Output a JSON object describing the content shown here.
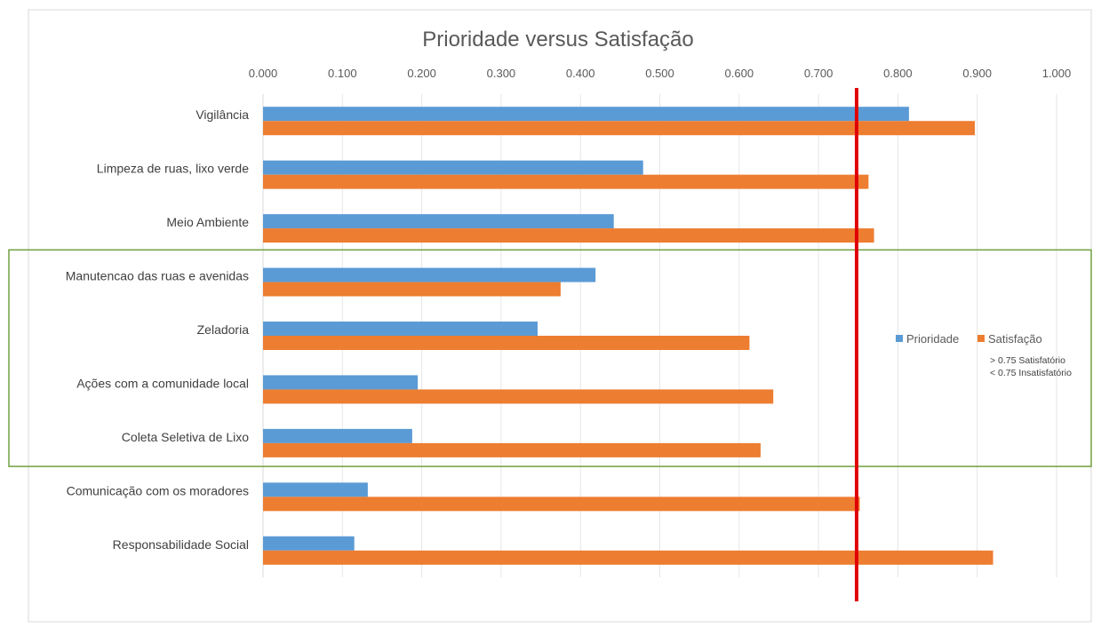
{
  "chart_data": {
    "type": "bar",
    "orientation": "horizontal",
    "title": "Prioridade versus Satisfação",
    "xlim": [
      0,
      1
    ],
    "x_ticks": [
      "0.000",
      "0.100",
      "0.200",
      "0.300",
      "0.400",
      "0.500",
      "0.600",
      "0.700",
      "0.800",
      "0.900",
      "1.000"
    ],
    "x_axis_position": "top",
    "grid": true,
    "categories": [
      "Vigilância",
      "Limpeza de ruas, lixo verde",
      "Meio Ambiente",
      "Manutencao das ruas e avenidas",
      "Zeladoria",
      "Ações com a comunidade local",
      "Coleta Seletiva de Lixo",
      "Comunicação com os moradores",
      "Responsabilidade Social"
    ],
    "series": [
      {
        "name": "Prioridade",
        "color": "#5B9BD5",
        "values": [
          0.814,
          0.479,
          0.442,
          0.419,
          0.346,
          0.195,
          0.188,
          0.132,
          0.115
        ]
      },
      {
        "name": "Satisfação",
        "color": "#ED7D31",
        "values": [
          0.897,
          0.763,
          0.77,
          0.375,
          0.613,
          0.643,
          0.627,
          0.752,
          0.92
        ]
      }
    ],
    "reference_line": {
      "value": 0.748,
      "color": "#E00000"
    },
    "highlight_box": {
      "categories": [
        "Manutencao das ruas e avenidas",
        "Coleta Seletiva de Lixo"
      ],
      "color": "#70A040"
    },
    "legend_placement": "right",
    "annotations": [
      "> 0.75 Satisfatório",
      "< 0.75 Insatisfatório"
    ]
  }
}
